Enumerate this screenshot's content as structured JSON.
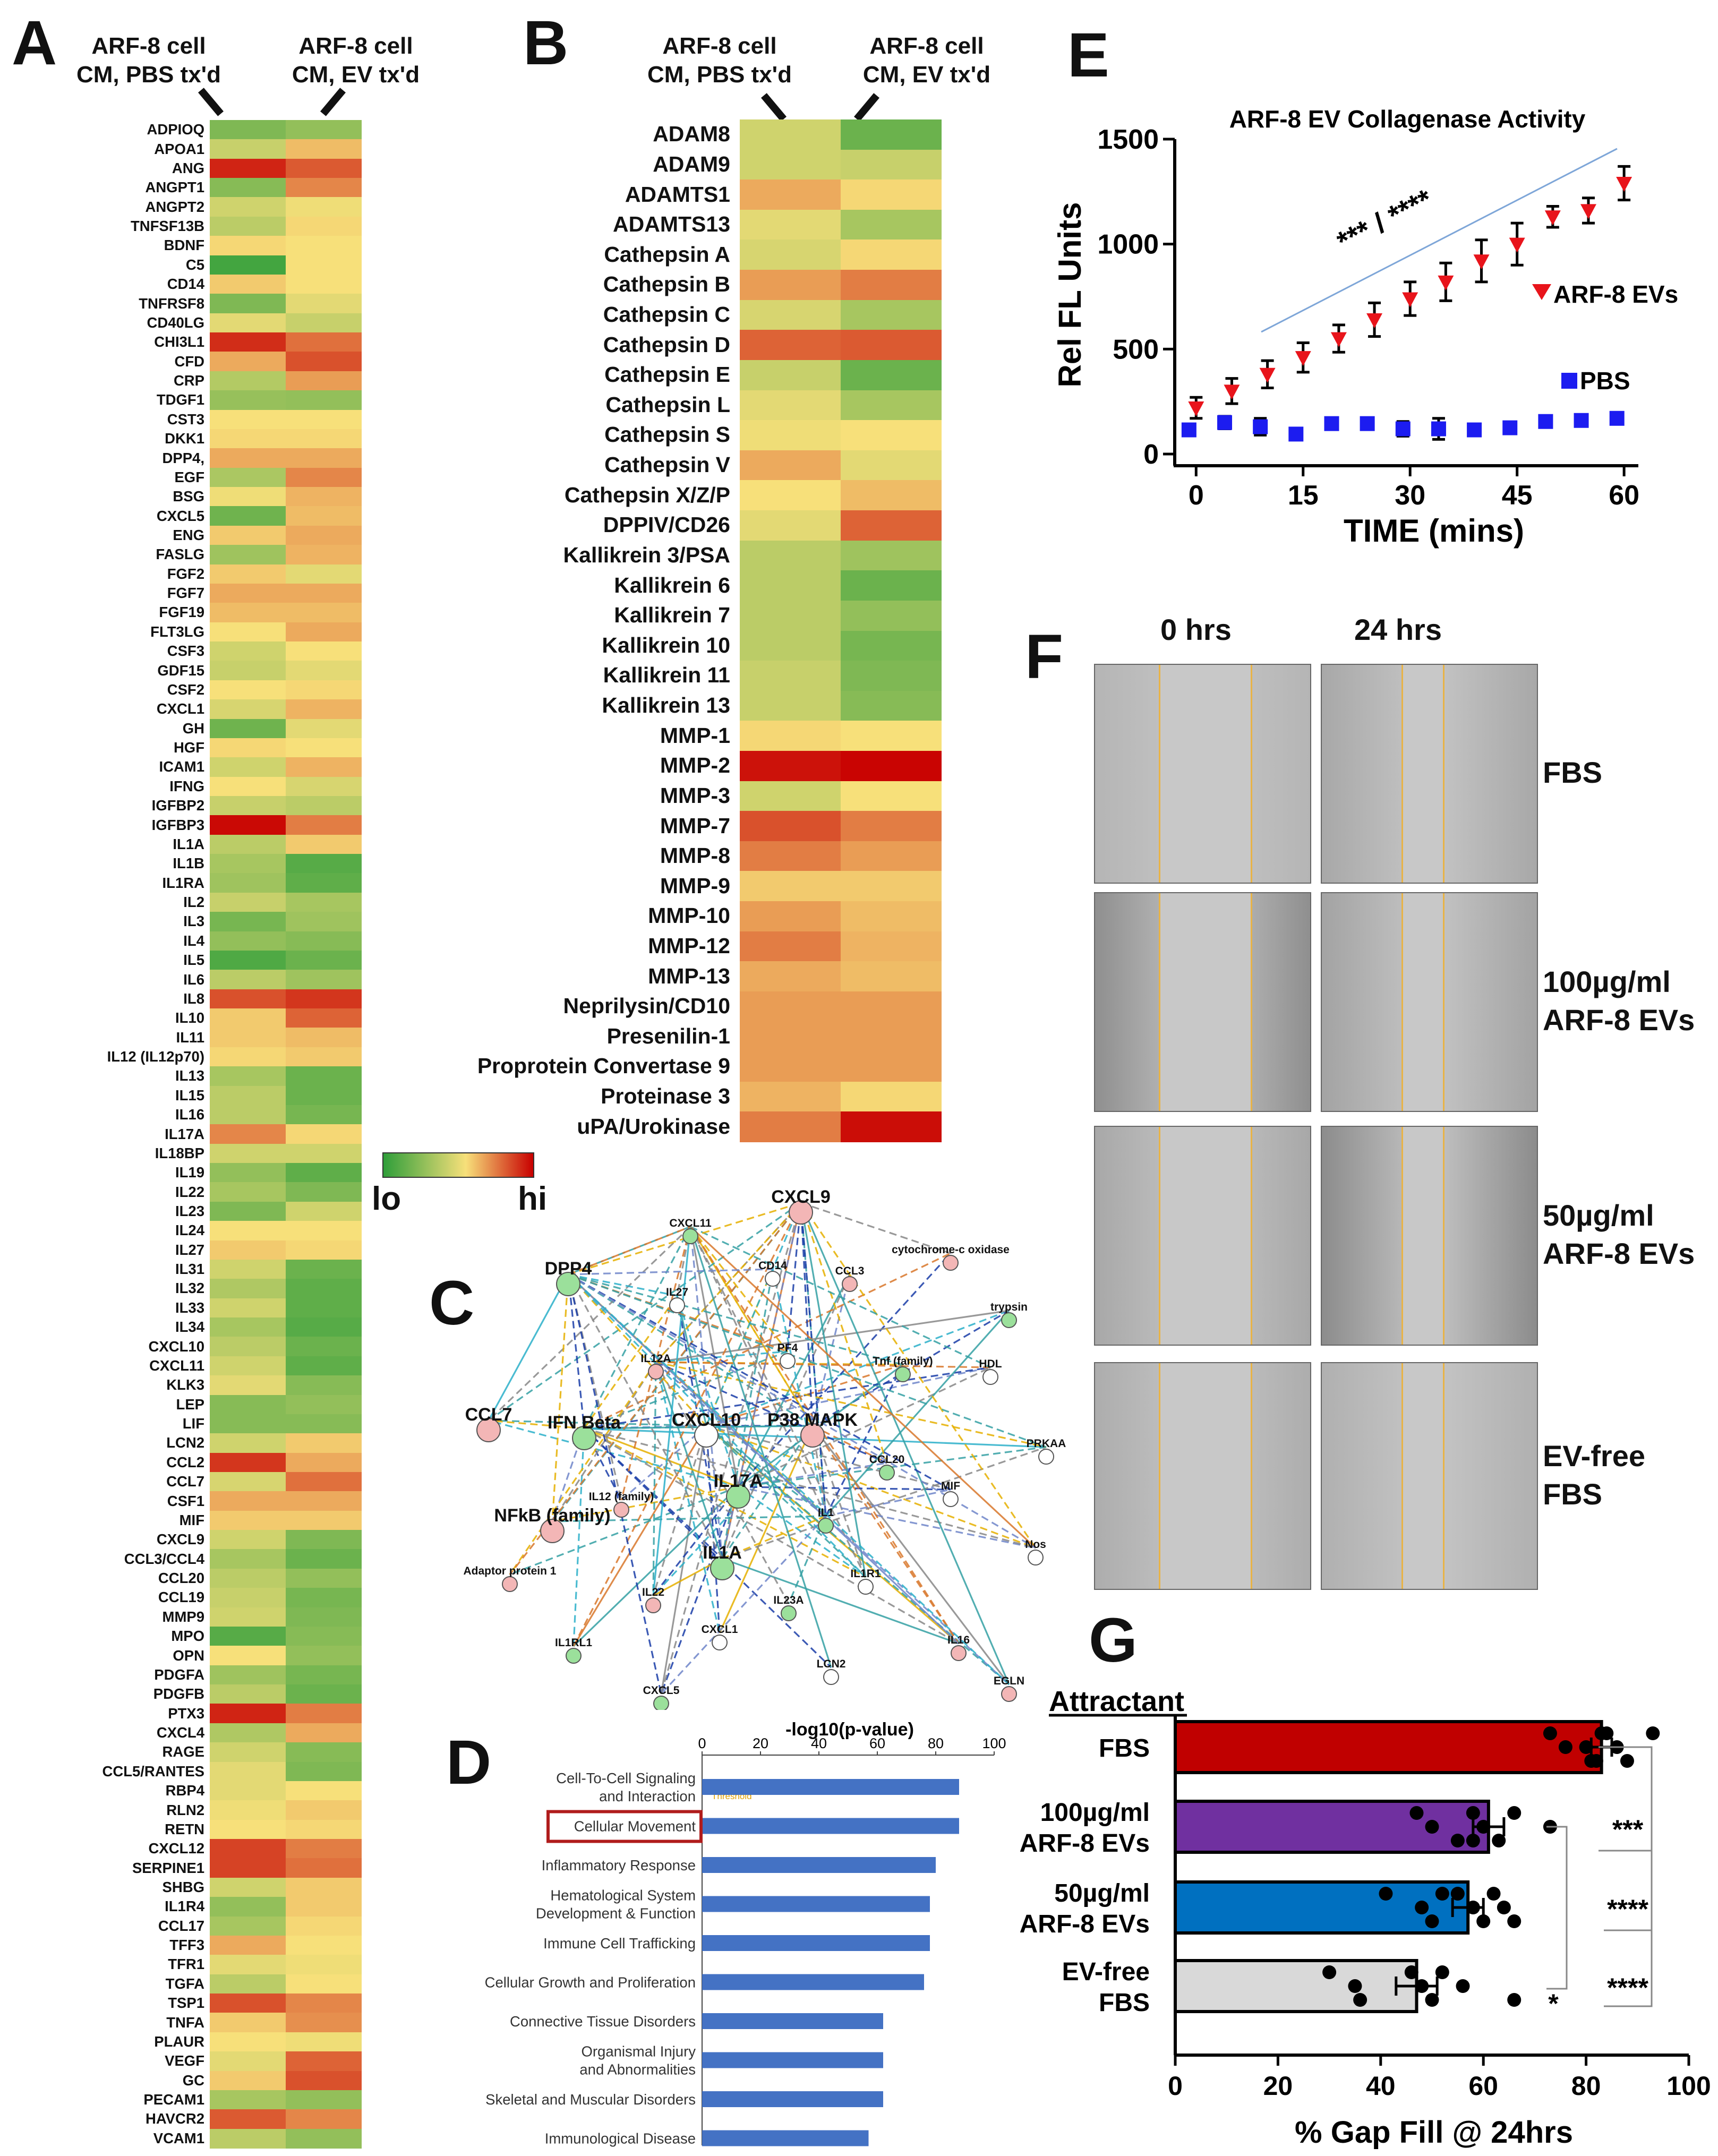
{
  "panels": {
    "A": "A",
    "B": "B",
    "C": "C",
    "D": "D",
    "E": "E",
    "F": "F",
    "G": "G"
  },
  "heatmap_headers": {
    "col1": "ARF-8 cell CM, PBS tx'd",
    "col2": "ARF-8 cell CM, EV tx'd"
  },
  "colors": {
    "lo": "#2f9e3a",
    "mid": "#f7e07a",
    "hi": "#c80000",
    "bar_blue": "#4472c4",
    "red_box": "#b01c1c"
  },
  "legend": {
    "lo": "lo",
    "hi": "hi"
  },
  "heatmap_A": {
    "labels": [
      "ADPIOQ",
      "APOA1",
      "ANG",
      "ANGPT1",
      "ANGPT2",
      "TNFSF13B",
      "BDNF",
      "C5",
      "CD14",
      "TNFRSF8",
      "CD40LG",
      "CHI3L1",
      "CFD",
      "CRP",
      "TDGF1",
      "CST3",
      "DKK1",
      "DPP4,",
      "EGF",
      "BSG",
      "CXCL5",
      "ENG",
      "FASLG",
      "FGF2",
      "FGF7",
      "FGF19",
      "FLT3LG",
      "CSF3",
      "GDF15",
      "CSF2",
      "CXCL1",
      "GH",
      "HGF",
      "ICAM1",
      "IFNG",
      "IGFBP2",
      "IGFBP3",
      "IL1A",
      "IL1B",
      "IL1RA",
      "IL2",
      "IL3",
      "IL4",
      "IL5",
      "IL6",
      "IL8",
      "IL10",
      "IL11",
      "IL12 (IL12p70)",
      "IL13",
      "IL15",
      "IL16",
      "IL17A",
      "IL18BP",
      "IL19",
      "IL22",
      "IL23",
      "IL24",
      "IL27",
      "IL31",
      "IL32",
      "IL33",
      "IL34",
      "CXCL10",
      "CXCL11",
      "KLK3",
      "LEP",
      "LIF",
      "LCN2",
      "CCL2",
      "CCL7",
      "CSF1",
      "MIF",
      "CXCL9",
      "CCL3/CCL4",
      "CCL20",
      "CCL19",
      "MMP9",
      "MPO",
      "OPN",
      "PDGFA",
      "PDGFB",
      "PTX3",
      "CXCL4",
      "RAGE",
      "CCL5/RANTES",
      "RBP4",
      "RLN2",
      "RETN",
      "CXCL12",
      "SERPINE1",
      "SHBG",
      "IL1R4",
      "CCL17",
      "TFF3",
      "TFR1",
      "TGFA",
      "TSP1",
      "TNFA",
      "PLAUR",
      "VEGF",
      "GC",
      "PECAM1",
      "HAVCR2",
      "VCAM1"
    ],
    "pbs": [
      0.2,
      0.38,
      0.92,
      0.22,
      0.4,
      0.35,
      0.52,
      0.05,
      0.55,
      0.2,
      0.45,
      0.9,
      0.62,
      0.33,
      0.26,
      0.5,
      0.52,
      0.62,
      0.31,
      0.48,
      0.16,
      0.55,
      0.28,
      0.55,
      0.62,
      0.58,
      0.5,
      0.4,
      0.38,
      0.5,
      0.42,
      0.16,
      0.52,
      0.4,
      0.5,
      0.38,
      0.98,
      0.35,
      0.3,
      0.28,
      0.38,
      0.18,
      0.25,
      0.08,
      0.35,
      0.82,
      0.55,
      0.55,
      0.52,
      0.3,
      0.35,
      0.35,
      0.7,
      0.4,
      0.25,
      0.3,
      0.2,
      0.5,
      0.55,
      0.4,
      0.32,
      0.4,
      0.3,
      0.35,
      0.4,
      0.45,
      0.22,
      0.22,
      0.4,
      0.88,
      0.42,
      0.62,
      0.55,
      0.4,
      0.3,
      0.35,
      0.38,
      0.4,
      0.1,
      0.5,
      0.28,
      0.35,
      0.92,
      0.32,
      0.4,
      0.45,
      0.45,
      0.48,
      0.5,
      0.85,
      0.85,
      0.4,
      0.25,
      0.3,
      0.62,
      0.45,
      0.35,
      0.82,
      0.55,
      0.5,
      0.45,
      0.55,
      0.3,
      0.8,
      0.35
    ],
    "ev": [
      0.25,
      0.58,
      0.8,
      0.7,
      0.48,
      0.52,
      0.5,
      0.5,
      0.5,
      0.45,
      0.38,
      0.75,
      0.82,
      0.65,
      0.25,
      0.5,
      0.52,
      0.62,
      0.7,
      0.6,
      0.58,
      0.62,
      0.6,
      0.45,
      0.62,
      0.58,
      0.62,
      0.5,
      0.45,
      0.52,
      0.6,
      0.45,
      0.5,
      0.6,
      0.42,
      0.35,
      0.72,
      0.55,
      0.1,
      0.12,
      0.3,
      0.28,
      0.22,
      0.15,
      0.28,
      0.88,
      0.78,
      0.58,
      0.55,
      0.15,
      0.15,
      0.18,
      0.52,
      0.4,
      0.12,
      0.2,
      0.4,
      0.5,
      0.52,
      0.15,
      0.12,
      0.12,
      0.1,
      0.15,
      0.12,
      0.22,
      0.25,
      0.22,
      0.55,
      0.62,
      0.75,
      0.62,
      0.55,
      0.2,
      0.15,
      0.25,
      0.18,
      0.2,
      0.22,
      0.25,
      0.18,
      0.15,
      0.72,
      0.62,
      0.22,
      0.2,
      0.5,
      0.55,
      0.52,
      0.72,
      0.75,
      0.55,
      0.55,
      0.52,
      0.5,
      0.48,
      0.5,
      0.7,
      0.68,
      0.48,
      0.78,
      0.82,
      0.25,
      0.7,
      0.25
    ]
  },
  "heatmap_B": {
    "labels": [
      "ADAM8",
      "ADAM9",
      "ADAMTS1",
      "ADAMTS13",
      "Cathepsin A",
      "Cathepsin B",
      "Cathepsin C",
      "Cathepsin D",
      "Cathepsin E",
      "Cathepsin L",
      "Cathepsin S",
      "Cathepsin V",
      "Cathepsin X/Z/P",
      "DPPIV/CD26",
      "Kallikrein 3/PSA",
      "Kallikrein 6",
      "Kallikrein 7",
      "Kallikrein 10",
      "Kallikrein 11",
      "Kallikrein 13",
      "MMP-1",
      "MMP-2",
      "MMP-3",
      "MMP-7",
      "MMP-8",
      "MMP-9",
      "MMP-10",
      "MMP-12",
      "MMP-13",
      "Neprilysin/CD10",
      "Presenilin-1",
      "Proprotein Convertase 9",
      "Proteinase 3",
      "uPA/Urokinase"
    ],
    "pbs": [
      0.4,
      0.4,
      0.62,
      0.45,
      0.42,
      0.65,
      0.42,
      0.78,
      0.38,
      0.45,
      0.48,
      0.62,
      0.5,
      0.45,
      0.35,
      0.35,
      0.35,
      0.35,
      0.38,
      0.38,
      0.52,
      0.96,
      0.4,
      0.82,
      0.72,
      0.55,
      0.65,
      0.72,
      0.62,
      0.65,
      0.65,
      0.65,
      0.6,
      0.72
    ],
    "ev": [
      0.15,
      0.38,
      0.52,
      0.3,
      0.52,
      0.72,
      0.3,
      0.8,
      0.15,
      0.3,
      0.5,
      0.45,
      0.58,
      0.78,
      0.28,
      0.15,
      0.25,
      0.18,
      0.2,
      0.22,
      0.5,
      0.99,
      0.5,
      0.72,
      0.65,
      0.55,
      0.58,
      0.6,
      0.58,
      0.65,
      0.65,
      0.65,
      0.52,
      0.97
    ]
  },
  "network": {
    "nodes": [
      "CXCL9",
      "CXCL11",
      "CD14",
      "CCL3",
      "DPP4",
      "IL27",
      "cytochrome-c oxidase",
      "trypsin",
      "PF4",
      "IL12A",
      "Tnf (family)",
      "HDL",
      "CCL7",
      "IFN Beta",
      "CXCL10",
      "P38 MAPK",
      "CCL20",
      "PRKAA",
      "IL12 (family)",
      "IL17A",
      "MIF",
      "NFkB (family)",
      "IL1",
      "Nos",
      "Adaptor protein 1",
      "IL1A",
      "IL1R1",
      "IL22",
      "IL23A",
      "CXCL1",
      "IL16",
      "IL1RL1",
      "LCN2",
      "EGLN",
      "CXCL5"
    ]
  },
  "chart_data": [
    {
      "panel": "D",
      "type": "bar",
      "orientation": "horizontal",
      "title": "-log10(p-value)",
      "categories": [
        "Cell-To-Cell Signaling and Interaction",
        "Cellular Movement",
        "Inflammatory Response",
        "Hematological System Development & Function",
        "Immune Cell Trafficking",
        "Cellular Growth and Proliferation",
        "Connective Tissue Disorders",
        "Organismal Injury and Abnormalities",
        "Skeletal and Muscular Disorders",
        "Immunological Disease"
      ],
      "category_lines": [
        [
          "Cell-To-Cell Signaling",
          "and Interaction"
        ],
        [
          "Cellular Movement"
        ],
        [
          "Inflammatory Response"
        ],
        [
          "Hematological System",
          "Development & Function"
        ],
        [
          "Immune Cell Trafficking"
        ],
        [
          "Cellular Growth and Proliferation"
        ],
        [
          "Connective Tissue Disorders"
        ],
        [
          "Organismal Injury",
          "and Abnormalities"
        ],
        [
          "Skeletal and Muscular Disorders"
        ],
        [
          "Immunological Disease"
        ]
      ],
      "values": [
        88,
        88,
        80,
        78,
        78,
        76,
        62,
        62,
        62,
        57
      ],
      "xlim": [
        0,
        100
      ],
      "xticks": [
        0,
        20,
        40,
        60,
        80,
        100
      ],
      "threshold_label": "Threshold",
      "highlight": "Cellular Movement"
    },
    {
      "panel": "E",
      "type": "scatter",
      "title": "ARF-8 EV Collagenase Activity",
      "xlabel": "TIME (mins)",
      "ylabel": "Rel FL Units",
      "xlim": [
        -3,
        62
      ],
      "ylim": [
        0,
        1500
      ],
      "xticks": [
        0,
        15,
        30,
        45,
        60
      ],
      "yticks": [
        0,
        500,
        1000,
        1500
      ],
      "series": [
        {
          "name": "ARF-8 EVs",
          "x": [
            0,
            5,
            10,
            15,
            20,
            25,
            30,
            35,
            40,
            45,
            50,
            55,
            60
          ],
          "y": [
            220,
            300,
            380,
            460,
            550,
            640,
            740,
            820,
            920,
            1000,
            1130,
            1160,
            1290
          ],
          "err": [
            50,
            60,
            65,
            70,
            65,
            80,
            80,
            90,
            100,
            100,
            50,
            60,
            80
          ]
        },
        {
          "name": "PBS",
          "x": [
            -1,
            4,
            9,
            14,
            19,
            24,
            29,
            34,
            39,
            44,
            49,
            54,
            59
          ],
          "y": [
            115,
            150,
            130,
            95,
            145,
            145,
            120,
            120,
            115,
            125,
            155,
            160,
            170
          ],
          "err": [
            15,
            30,
            40,
            25,
            10,
            10,
            35,
            50,
            10,
            10,
            15,
            15,
            15
          ]
        }
      ],
      "annotation": "*** / ****"
    },
    {
      "panel": "G",
      "type": "bar",
      "orientation": "horizontal",
      "title": "Attractant",
      "xlabel": "% Gap Fill @ 24hrs",
      "xlim": [
        0,
        100
      ],
      "xticks": [
        0,
        20,
        40,
        60,
        80,
        100
      ],
      "categories": [
        "FBS",
        "100µg/ml ARF-8 EVs",
        "50µg/ml ARF-8 EVs",
        "EV-free FBS"
      ],
      "category_lines": [
        [
          "FBS"
        ],
        [
          "100µg/ml",
          "ARF-8 EVs"
        ],
        [
          "50µg/ml",
          "ARF-8 EVs"
        ],
        [
          "EV-free",
          "FBS"
        ]
      ],
      "values": [
        83,
        61,
        57,
        47
      ],
      "errors": [
        2,
        3,
        3,
        4
      ],
      "colors": [
        "#c00000",
        "#7030a0",
        "#0070c0",
        "#d9d9d9"
      ],
      "points": [
        [
          73,
          76,
          82,
          84,
          86,
          88,
          83,
          80,
          81,
          93
        ],
        [
          47,
          50,
          55,
          58,
          60,
          63,
          66,
          73,
          58
        ],
        [
          41,
          48,
          50,
          52,
          58,
          60,
          62,
          64,
          66,
          55
        ],
        [
          30,
          35,
          36,
          46,
          48,
          50,
          52,
          56,
          66
        ]
      ],
      "significance": [
        "***",
        "****",
        "****",
        "*"
      ]
    }
  ],
  "panelF": {
    "col_labels": [
      "0 hrs",
      "24 hrs"
    ],
    "row_labels": [
      [
        "FBS"
      ],
      [
        "100µg/ml",
        "ARF-8 EVs"
      ],
      [
        "50µg/ml",
        "ARF-8 EVs"
      ],
      [
        "EV-free",
        "FBS"
      ]
    ]
  }
}
